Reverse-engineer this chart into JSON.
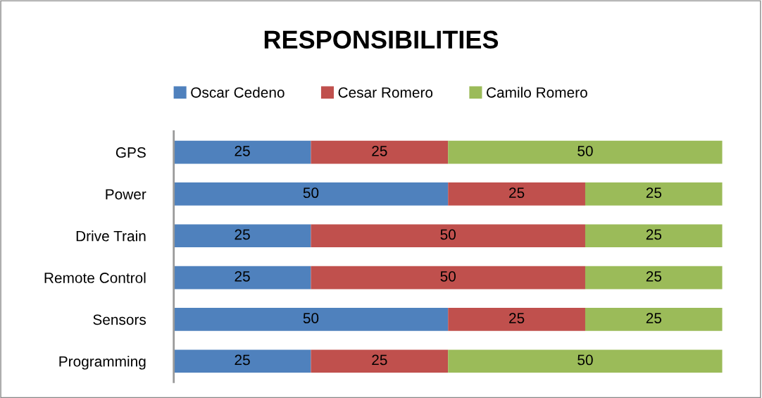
{
  "chart_data": {
    "type": "bar",
    "title": "RESPONSIBILITIES",
    "orientation": "horizontal",
    "stacked": true,
    "data_labels": true,
    "legend": "top",
    "grid": false,
    "categories": [
      "GPS",
      "Power",
      "Drive Train",
      "Remote Control",
      "Sensors",
      "Programming"
    ],
    "series": [
      {
        "name": "Oscar Cedeno",
        "color": "#4f81bd",
        "values": [
          25,
          50,
          25,
          25,
          50,
          25
        ]
      },
      {
        "name": "Cesar Romero",
        "color": "#c0504d",
        "values": [
          25,
          25,
          50,
          50,
          25,
          25
        ]
      },
      {
        "name": "Camilo Romero",
        "color": "#9bbb59",
        "values": [
          50,
          25,
          25,
          25,
          25,
          50
        ]
      }
    ]
  }
}
